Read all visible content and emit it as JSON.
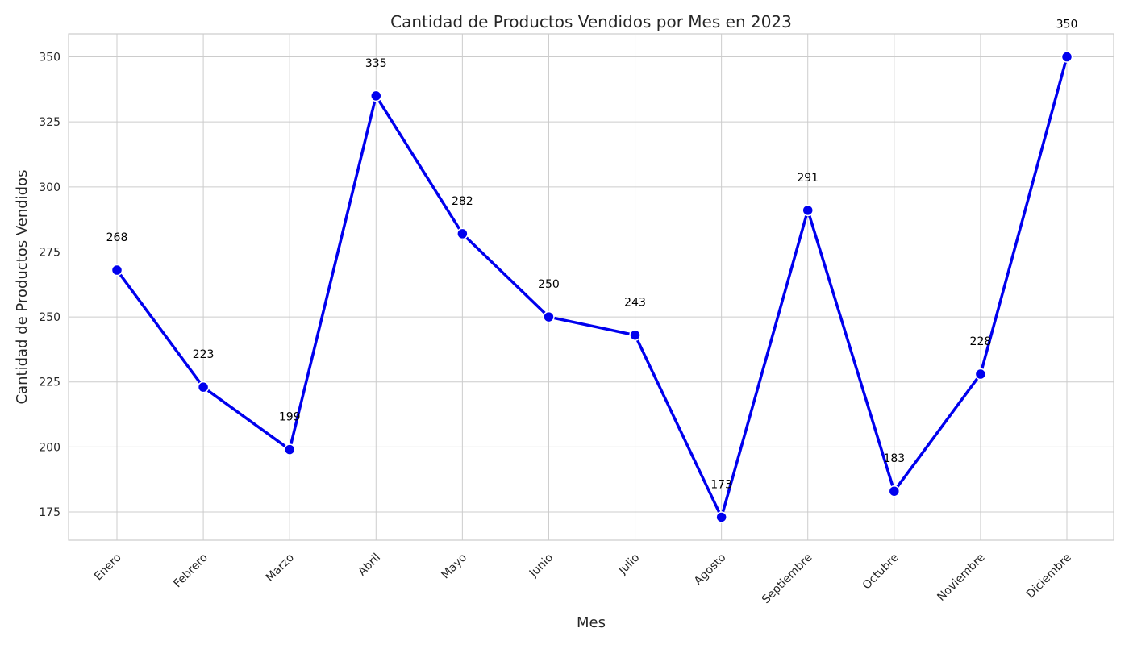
{
  "chart_data": {
    "type": "line",
    "title": "Cantidad de Productos Vendidos por Mes en 2023",
    "xlabel": "Mes",
    "ylabel": "Cantidad de Productos Vendidos",
    "categories": [
      "Enero",
      "Febrero",
      "Marzo",
      "Abril",
      "Mayo",
      "Junio",
      "Julio",
      "Agosto",
      "Septiembre",
      "Octubre",
      "Noviembre",
      "Diciembre"
    ],
    "series": [
      {
        "values": [
          268,
          223,
          199,
          335,
          282,
          250,
          243,
          173,
          291,
          183,
          228,
          350
        ]
      }
    ],
    "data_labels": [
      "268",
      "223",
      "199",
      "335",
      "282",
      "250",
      "243",
      "173",
      "291",
      "183",
      "228",
      "350"
    ],
    "yticks": [
      175,
      200,
      225,
      250,
      275,
      300,
      325,
      350
    ],
    "ylim": [
      164.15,
      358.85
    ],
    "grid": true,
    "line_color": "#0000ee",
    "marker_color": "#0000ee",
    "marker_edge_color": "#ffffff"
  }
}
